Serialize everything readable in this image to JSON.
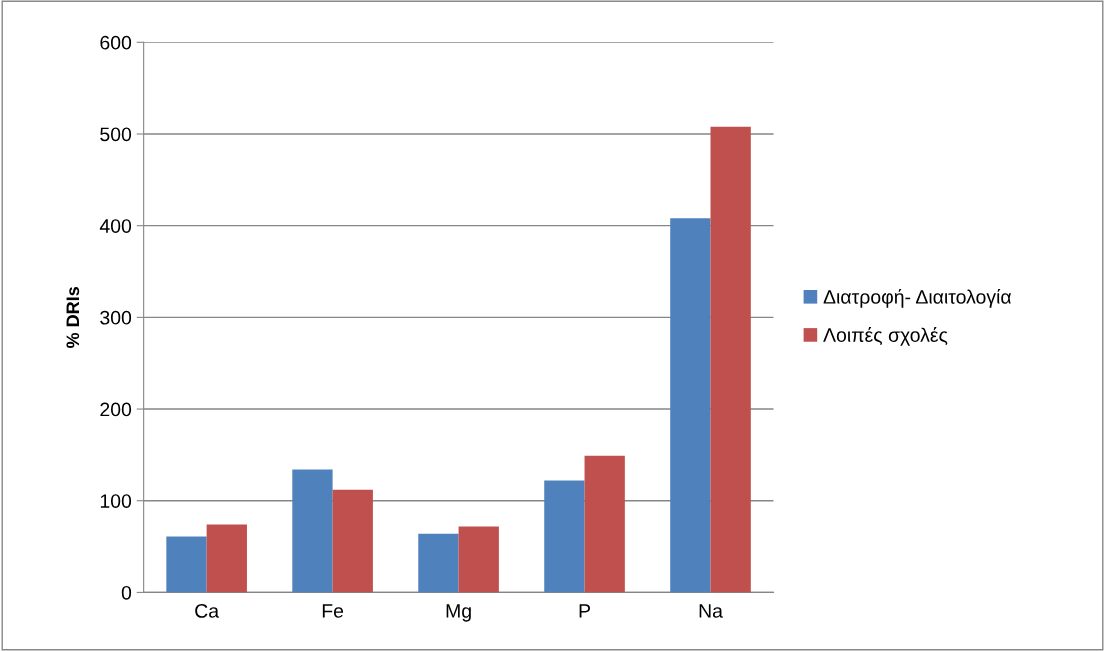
{
  "chart_data": {
    "type": "bar",
    "ylabel": "% DRIs",
    "categories": [
      "Ca",
      "Fe",
      "Mg",
      "P",
      "Na"
    ],
    "series": [
      {
        "name": "Διατροφή- Διαιτολογία",
        "color": "#4f81bd",
        "values": [
          61,
          134,
          64,
          122,
          408
        ]
      },
      {
        "name": "Λοιπές σχολές",
        "color": "#c0504d",
        "values": [
          74,
          112,
          72,
          149,
          508
        ]
      }
    ],
    "ylim": [
      0,
      600
    ],
    "yticks": [
      0,
      100,
      200,
      300,
      400,
      500,
      600
    ],
    "grid": "y",
    "legend": "right"
  }
}
